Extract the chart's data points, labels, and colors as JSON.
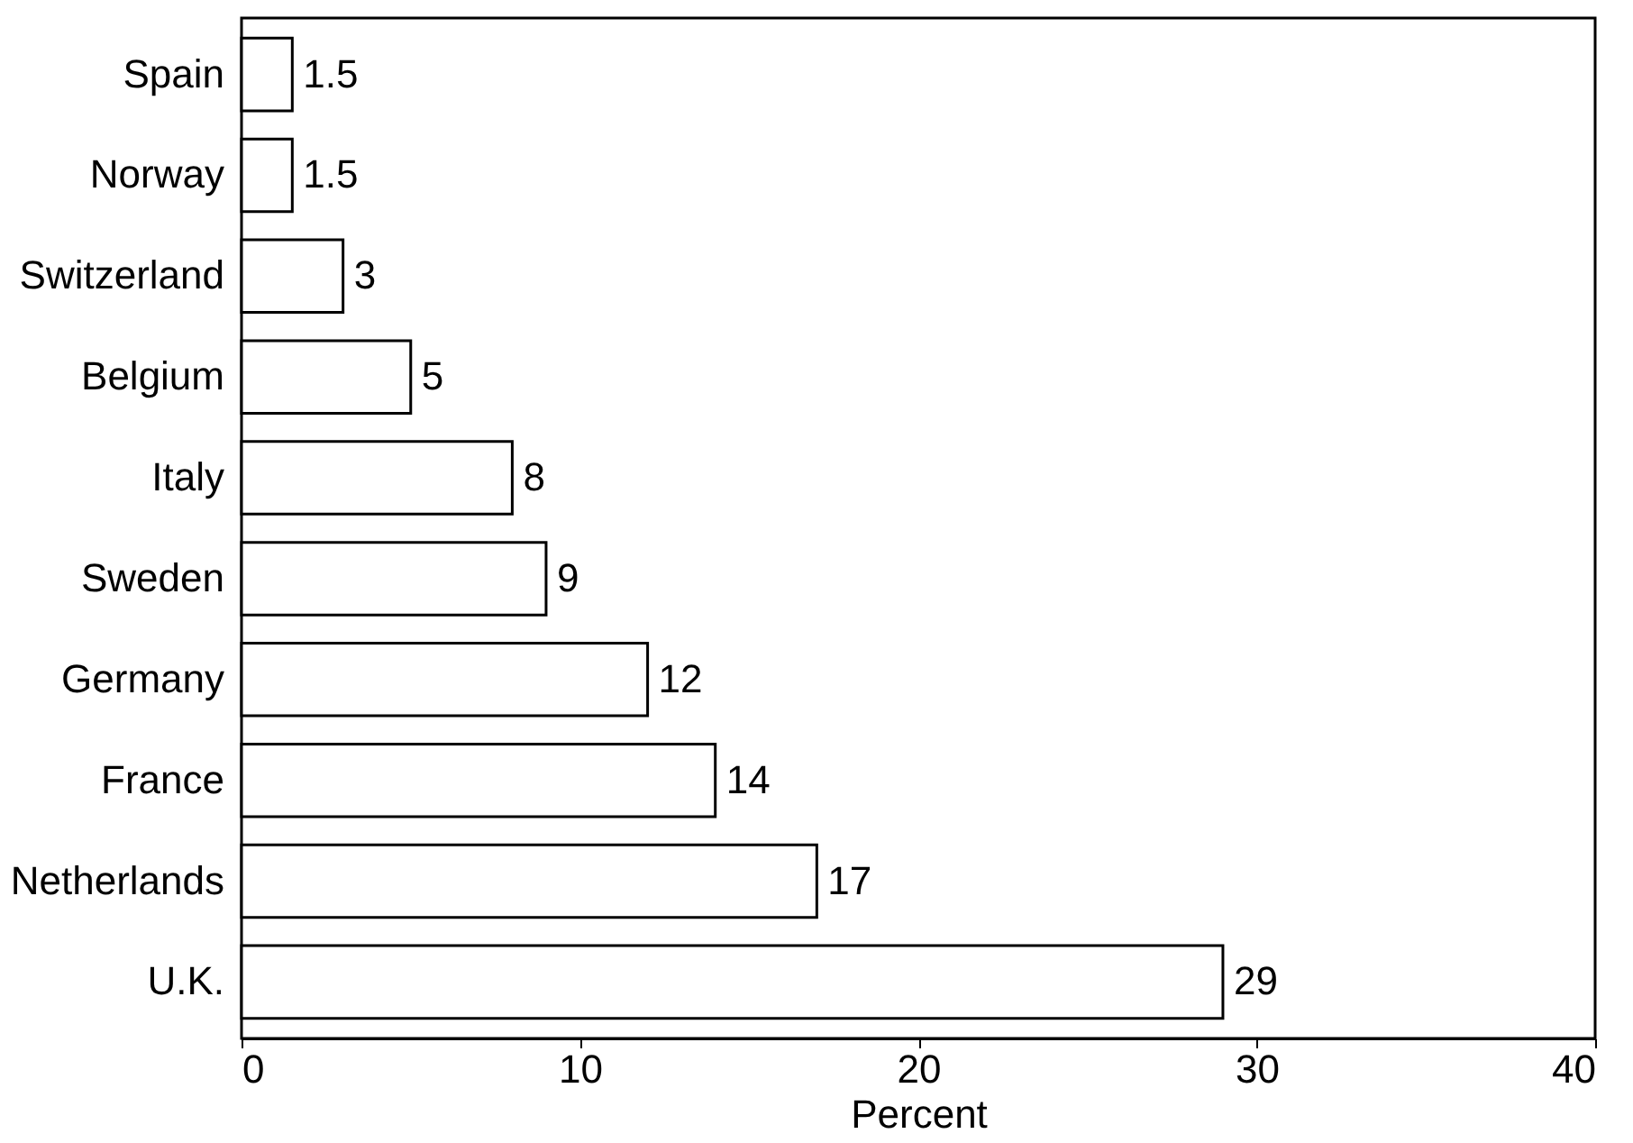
{
  "chart_data": {
    "type": "bar",
    "orientation": "horizontal",
    "xlabel": "Percent",
    "categories": [
      "Spain",
      "Norway",
      "Switzerland",
      "Belgium",
      "Italy",
      "Sweden",
      "Germany",
      "France",
      "Netherlands",
      "U.K."
    ],
    "values": [
      1.5,
      1.5,
      3,
      5,
      8,
      9,
      12,
      14,
      17,
      29
    ],
    "color": "#ffffff",
    "xlim": [
      0,
      40
    ],
    "xticks": [
      0,
      10,
      20,
      30,
      40
    ],
    "grid": false,
    "data_labels": true
  }
}
